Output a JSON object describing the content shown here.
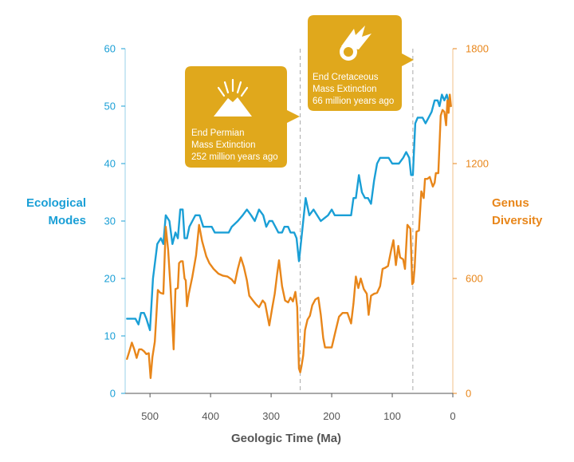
{
  "chart_data": {
    "type": "line",
    "xlabel": "Geologic Time (Ma)",
    "xlim": [
      541,
      0
    ],
    "xticks": [
      "500",
      "400",
      "300",
      "200",
      "100",
      "0"
    ],
    "xtick_values": [
      500,
      400,
      300,
      200,
      100,
      0
    ],
    "y_left": {
      "label_lines": [
        "Ecological",
        "Modes"
      ],
      "ylim": [
        0,
        60
      ],
      "ticks": [
        "0",
        "10",
        "20",
        "30",
        "40",
        "50",
        "60"
      ],
      "tick_values": [
        0,
        10,
        20,
        30,
        40,
        50,
        60
      ],
      "color": "#1a9fd6"
    },
    "y_right": {
      "label_lines": [
        "Genus",
        "Diversity"
      ],
      "ylim": [
        0,
        1800
      ],
      "ticks": [
        "0",
        "600",
        "1200",
        "1800"
      ],
      "tick_values": [
        0,
        600,
        1200,
        1800
      ],
      "color": "#e8861a"
    },
    "series": [
      {
        "axis": "left",
        "color": "#1a9fd6",
        "points": [
          [
            538,
            13
          ],
          [
            530,
            13
          ],
          [
            524,
            13
          ],
          [
            519,
            12
          ],
          [
            515,
            14
          ],
          [
            510,
            14
          ],
          [
            506,
            13
          ],
          [
            500,
            11
          ],
          [
            495,
            20
          ],
          [
            488,
            26
          ],
          [
            482,
            27
          ],
          [
            478,
            26
          ],
          [
            474,
            31
          ],
          [
            468,
            30
          ],
          [
            463,
            26
          ],
          [
            458,
            28
          ],
          [
            454,
            27
          ],
          [
            450,
            32
          ],
          [
            446,
            32
          ],
          [
            443,
            27
          ],
          [
            439,
            27
          ],
          [
            435,
            29
          ],
          [
            430,
            30
          ],
          [
            425,
            31
          ],
          [
            418,
            31
          ],
          [
            412,
            29
          ],
          [
            405,
            29
          ],
          [
            398,
            29
          ],
          [
            393,
            28
          ],
          [
            385,
            28
          ],
          [
            376,
            28
          ],
          [
            370,
            28
          ],
          [
            365,
            29
          ],
          [
            355,
            30
          ],
          [
            347,
            31
          ],
          [
            340,
            32
          ],
          [
            333,
            31
          ],
          [
            327,
            30
          ],
          [
            320,
            32
          ],
          [
            313,
            31
          ],
          [
            308,
            29
          ],
          [
            303,
            30
          ],
          [
            298,
            30
          ],
          [
            293,
            29
          ],
          [
            288,
            28
          ],
          [
            282,
            28
          ],
          [
            278,
            29
          ],
          [
            272,
            29
          ],
          [
            268,
            28
          ],
          [
            262,
            28
          ],
          [
            258,
            27
          ],
          [
            254,
            23
          ],
          [
            252,
            25
          ],
          [
            248,
            29
          ],
          [
            243,
            34
          ],
          [
            237,
            31
          ],
          [
            230,
            32
          ],
          [
            224,
            31
          ],
          [
            218,
            30
          ],
          [
            212,
            30.5
          ],
          [
            206,
            31
          ],
          [
            200,
            32
          ],
          [
            195,
            31
          ],
          [
            185,
            31
          ],
          [
            175,
            31
          ],
          [
            168,
            31
          ],
          [
            164,
            34
          ],
          [
            160,
            34
          ],
          [
            155,
            38
          ],
          [
            150,
            35
          ],
          [
            145,
            34
          ],
          [
            140,
            34
          ],
          [
            135,
            33
          ],
          [
            130,
            37
          ],
          [
            125,
            40
          ],
          [
            120,
            41
          ],
          [
            112,
            41
          ],
          [
            106,
            41
          ],
          [
            100,
            40
          ],
          [
            95,
            40
          ],
          [
            89,
            40
          ],
          [
            82,
            41
          ],
          [
            77,
            42
          ],
          [
            72,
            41
          ],
          [
            69,
            38
          ],
          [
            66,
            38
          ],
          [
            62,
            47
          ],
          [
            58,
            48
          ],
          [
            50,
            48
          ],
          [
            45,
            47
          ],
          [
            40,
            48
          ],
          [
            35,
            49
          ],
          [
            30,
            51
          ],
          [
            25,
            51
          ],
          [
            22,
            50
          ],
          [
            18,
            52
          ],
          [
            14,
            51
          ],
          [
            10,
            52
          ],
          [
            5,
            50
          ]
        ]
      },
      {
        "axis": "right",
        "color": "#e8861a",
        "points": [
          [
            538,
            180
          ],
          [
            534,
            220
          ],
          [
            530,
            265
          ],
          [
            526,
            230
          ],
          [
            522,
            185
          ],
          [
            518,
            230
          ],
          [
            514,
            230
          ],
          [
            510,
            220
          ],
          [
            506,
            205
          ],
          [
            502,
            210
          ],
          [
            499,
            80
          ],
          [
            496,
            190
          ],
          [
            492,
            270
          ],
          [
            487,
            540
          ],
          [
            483,
            525
          ],
          [
            478,
            520
          ],
          [
            474,
            870
          ],
          [
            470,
            750
          ],
          [
            466,
            545
          ],
          [
            461,
            230
          ],
          [
            458,
            545
          ],
          [
            454,
            550
          ],
          [
            452,
            680
          ],
          [
            449,
            690
          ],
          [
            446,
            690
          ],
          [
            443,
            600
          ],
          [
            441,
            590
          ],
          [
            439,
            455
          ],
          [
            436,
            520
          ],
          [
            430,
            610
          ],
          [
            424,
            720
          ],
          [
            419,
            880
          ],
          [
            414,
            795
          ],
          [
            407,
            715
          ],
          [
            402,
            680
          ],
          [
            395,
            650
          ],
          [
            387,
            625
          ],
          [
            380,
            615
          ],
          [
            372,
            610
          ],
          [
            365,
            595
          ],
          [
            360,
            575
          ],
          [
            355,
            650
          ],
          [
            350,
            710
          ],
          [
            345,
            660
          ],
          [
            340,
            590
          ],
          [
            336,
            510
          ],
          [
            330,
            485
          ],
          [
            325,
            465
          ],
          [
            320,
            450
          ],
          [
            314,
            485
          ],
          [
            310,
            470
          ],
          [
            303,
            355
          ],
          [
            298,
            450
          ],
          [
            294,
            520
          ],
          [
            290,
            625
          ],
          [
            287,
            695
          ],
          [
            282,
            560
          ],
          [
            277,
            485
          ],
          [
            272,
            475
          ],
          [
            268,
            500
          ],
          [
            264,
            480
          ],
          [
            260,
            530
          ],
          [
            257,
            450
          ],
          [
            254,
            130
          ],
          [
            252,
            110
          ],
          [
            250,
            140
          ],
          [
            247,
            200
          ],
          [
            244,
            330
          ],
          [
            240,
            385
          ],
          [
            236,
            405
          ],
          [
            232,
            460
          ],
          [
            227,
            490
          ],
          [
            222,
            500
          ],
          [
            218,
            410
          ],
          [
            214,
            290
          ],
          [
            211,
            240
          ],
          [
            207,
            240
          ],
          [
            200,
            240
          ],
          [
            194,
            320
          ],
          [
            188,
            400
          ],
          [
            182,
            420
          ],
          [
            174,
            420
          ],
          [
            168,
            365
          ],
          [
            164,
            470
          ],
          [
            160,
            610
          ],
          [
            156,
            550
          ],
          [
            152,
            600
          ],
          [
            147,
            545
          ],
          [
            142,
            520
          ],
          [
            139,
            410
          ],
          [
            135,
            510
          ],
          [
            130,
            520
          ],
          [
            125,
            525
          ],
          [
            120,
            560
          ],
          [
            116,
            650
          ],
          [
            112,
            655
          ],
          [
            107,
            665
          ],
          [
            102,
            745
          ],
          [
            98,
            800
          ],
          [
            94,
            670
          ],
          [
            90,
            770
          ],
          [
            87,
            710
          ],
          [
            82,
            700
          ],
          [
            79,
            650
          ],
          [
            75,
            880
          ],
          [
            70,
            860
          ],
          [
            67,
            570
          ],
          [
            65,
            580
          ],
          [
            63,
            655
          ],
          [
            60,
            845
          ],
          [
            56,
            850
          ],
          [
            52,
            1055
          ],
          [
            48,
            1020
          ],
          [
            46,
            1120
          ],
          [
            42,
            1120
          ],
          [
            38,
            1130
          ],
          [
            33,
            1080
          ],
          [
            30,
            1100
          ],
          [
            28,
            1150
          ],
          [
            24,
            1150
          ],
          [
            20,
            1450
          ],
          [
            17,
            1480
          ],
          [
            14,
            1470
          ],
          [
            11,
            1400
          ],
          [
            9,
            1530
          ],
          [
            7,
            1465
          ],
          [
            5,
            1560
          ],
          [
            3,
            1500
          ]
        ]
      }
    ],
    "annotations": [
      {
        "x": 252,
        "label_lines": [
          "End Permian",
          "Mass Extinction",
          "252 million years ago"
        ],
        "icon": "volcano-icon"
      },
      {
        "x": 66,
        "label_lines": [
          "End Cretaceous",
          "Mass Extinction",
          "66 million years ago"
        ],
        "icon": "meteor-icon"
      }
    ],
    "callout_color": "#e0a81c",
    "grid": false,
    "legend": "none"
  }
}
